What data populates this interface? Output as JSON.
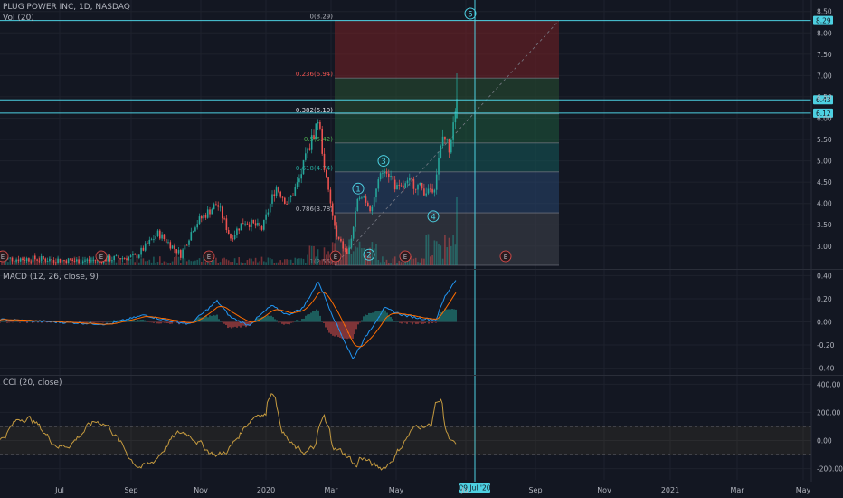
{
  "header": {
    "symbol_line": "PLUG POWER INC, 1D, NASDAQ",
    "volume_label": "Vol (20)"
  },
  "macd": {
    "label": "MACD (12, 26, close, 9)",
    "ticks": [
      "0.40",
      "0.20",
      "0.00",
      "-0.20",
      "-0.40"
    ]
  },
  "cci": {
    "label": "CCI (20, close)",
    "ticks": [
      "400.00",
      "200.00",
      "0.00",
      "-200.00"
    ]
  },
  "date_flag": "09 Jul '20",
  "colors": {
    "bg": "#131722",
    "grid": "#1e222d",
    "up": "#26a69a",
    "down": "#ef5350",
    "macd": "#2196f3",
    "signal": "#ff6d00",
    "cci": "#c49a3f",
    "hline": "#4dd0e1",
    "text": "#b2b5be",
    "wave": "#4dd0e1"
  },
  "chart_data": [
    {
      "type": "candlestick",
      "title": "PLUG POWER INC, 1D, NASDAQ",
      "x_ticks": [
        "Jul",
        "Sep",
        "Nov",
        "2020",
        "Mar",
        "May",
        "Jul",
        "Sep",
        "Nov",
        "2021",
        "Mar",
        "May"
      ],
      "y_ticks": [
        "8.50",
        "8.00",
        "7.50",
        "7.00",
        "6.50",
        "6.00",
        "5.50",
        "5.00",
        "4.50",
        "4.00",
        "3.50",
        "3.00"
      ],
      "ylim": [
        2.55,
        8.6
      ],
      "price_labels": [
        "8.29",
        "6.43",
        "6.12"
      ],
      "price_label_values": [
        8.29,
        6.43,
        6.12
      ],
      "fib_levels": [
        {
          "label": "0(8.29)",
          "value": 8.29,
          "fill": "rgba(120,32,36,0.55)"
        },
        {
          "label": "0.236(6.94)",
          "value": 6.94,
          "fill": "rgba(40,80,50,0.55)"
        },
        {
          "label": "0.382(6.10)",
          "value": 6.1,
          "fill": "rgba(30,90,60,0.55)"
        },
        {
          "label": "0.5(5.42)",
          "value": 5.42,
          "fill": "rgba(20,90,90,0.55)"
        },
        {
          "label": "0.618(4.74)",
          "value": 4.74,
          "fill": "rgba(40,70,110,0.55)"
        },
        {
          "label": "0.786(3.78)",
          "value": 3.78,
          "fill": "rgba(60,64,74,0.6)"
        },
        {
          "label": "1(2.55)",
          "value": 2.55,
          "fill": null
        }
      ],
      "waves": [
        {
          "label": "1",
          "value": 4.35
        },
        {
          "label": "2",
          "value": 2.8
        },
        {
          "label": "3",
          "value": 5.0
        },
        {
          "label": "4",
          "value": 3.7
        },
        {
          "label": "5",
          "value": 8.5
        }
      ],
      "earnings_marker": "E"
    },
    {
      "type": "line",
      "title": "MACD (12, 26, close, 9)",
      "ylim": [
        -0.45,
        0.45
      ],
      "series": [
        "MACD",
        "Signal",
        "Histogram"
      ]
    },
    {
      "type": "line",
      "title": "CCI (20, close)",
      "ylim": [
        -280,
        460
      ],
      "bands": [
        100,
        -100
      ]
    }
  ]
}
